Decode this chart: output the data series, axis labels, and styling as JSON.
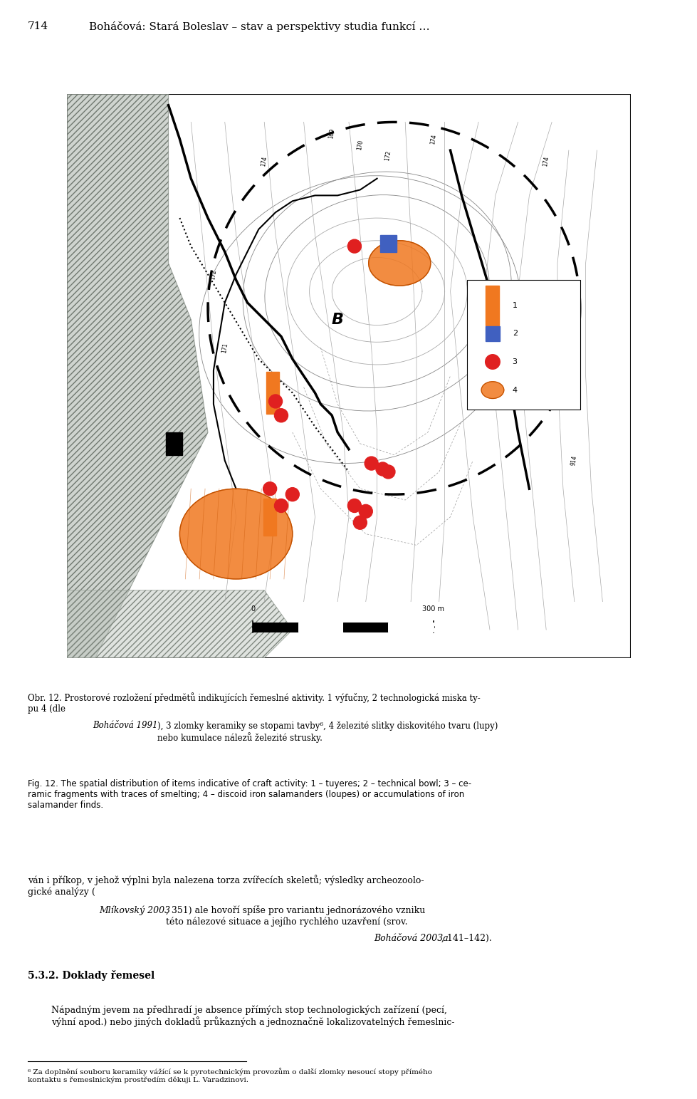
{
  "page_title": "714",
  "page_header": "Boháčová: Stará Boleslav – stav a perspektivy studia funkcí …",
  "fig_caption_cz": "Obr. 12. Prostorové rozložení předmětů indikujících řemeslé aktivity. 1 výfučny, 2 technologická miska typu 4 (dle Boháčová 1991), 3 zlomky keramiky se stopami tavby⁶, 4 železité slitky diskovitého tvaru (lupy) nebo kumulace nálezů železité strusky.",
  "fig_caption_en": "Fig. 12. The spatial distribution of items indicative of craft activity: 1 – tuyeres; 2 – technical bowl; 3 – ceramic fragments with traces of smelting; 4 – discoid iron salamanders (loupes) or accumulations of iron salamander finds.",
  "paragraph_text": "ván i příkop, v jehož výplni byla nalezena torza zvířecích skeletů; výsledky archeozoologické analýzy (Mlíkovský 2003, 351) ale hovoru spíše pro variantu jednorázového vzniku této nálezové situace a jejího rychlého uzavření (srov. Boháčová 2003a, 141–142).",
  "section_title": "5.3.2. Doklady řemesel",
  "section_text": "Nápadným jevem na předhradí je absence přímých stop technologických zařízení (pecí, výhní apod.) nebo jiných dokladů průkazných a jednoznačně lokalizovatelelných řemeslnic-",
  "footnote": "⁶ Za dolnění souboru keramiky vážeící se k pyrotechnickým provozům o další zlomky nesoucí stopy přímého kontaktu s řemeslníckým prostředím děkuji L. Varadzinovi.",
  "background_color": "#ffffff",
  "map_bg": "#ffffff",
  "contour_color": "#aaaaaa",
  "heavy_contour_color": "#000000",
  "dashed_contour_color": "#333333",
  "orange_color": "#f07820",
  "red_color": "#e02020",
  "blue_color": "#4060c0",
  "dark_color": "#202020"
}
